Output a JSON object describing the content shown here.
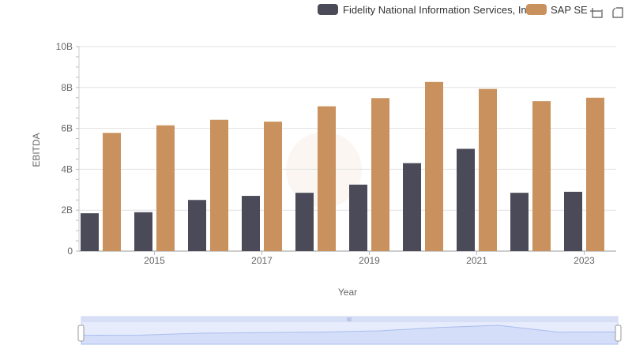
{
  "legend": {
    "series_1": "Fidelity National Information Services, Inc.",
    "series_2": "SAP SE"
  },
  "toolbar": {
    "zoom_icon": "zoom-select-icon",
    "reset_icon": "zoom-reset-icon"
  },
  "chart_data": {
    "type": "bar",
    "title": "",
    "xlabel": "Year",
    "ylabel": "EBITDA",
    "ylim": [
      0,
      10
    ],
    "y_ticks": [
      "0",
      "2B",
      "4B",
      "6B",
      "8B",
      "10B"
    ],
    "x_ticks": [
      "2015",
      "2017",
      "2019",
      "2021",
      "2023"
    ],
    "categories": [
      "2014",
      "2015",
      "2016",
      "2017",
      "2018",
      "2019",
      "2020",
      "2021",
      "2022",
      "2023"
    ],
    "series": [
      {
        "name": "Fidelity National Information Services, Inc.",
        "color": "#4a4a58",
        "values": [
          1.85,
          1.9,
          2.5,
          2.7,
          2.85,
          3.25,
          4.3,
          5.0,
          2.85,
          2.9
        ]
      },
      {
        "name": "SAP SE",
        "color": "#c9915d",
        "values": [
          5.78,
          6.15,
          6.42,
          6.33,
          7.08,
          7.48,
          8.27,
          7.93,
          7.33,
          7.5
        ]
      }
    ],
    "grid": true,
    "legend_position": "top-right",
    "has_range_slider": true
  }
}
